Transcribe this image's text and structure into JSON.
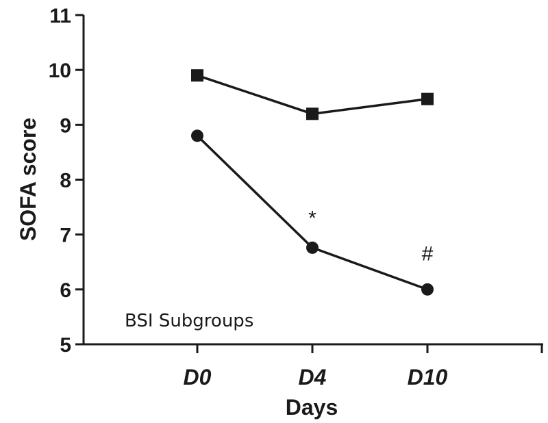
{
  "chart_data": {
    "type": "line",
    "title": "",
    "xlabel": "Days",
    "ylabel": "SOFA score",
    "categories": [
      "D0",
      "D4",
      "D10"
    ],
    "ylim": [
      5,
      11
    ],
    "yticks": [
      "5",
      "6",
      "7",
      "8",
      "9",
      "10",
      "11"
    ],
    "grid": false,
    "series": [
      {
        "marker": "square",
        "values": [
          9.9,
          9.2,
          9.47
        ]
      },
      {
        "marker": "circle",
        "values": [
          8.8,
          6.76,
          6.0
        ]
      }
    ],
    "annotations": [
      {
        "text": "*",
        "category": "D4",
        "value": 7.3
      },
      {
        "text": "#",
        "category": "D10",
        "value": 6.65
      }
    ],
    "note": "BSI Subgroups",
    "color": "#1a1a1a"
  }
}
